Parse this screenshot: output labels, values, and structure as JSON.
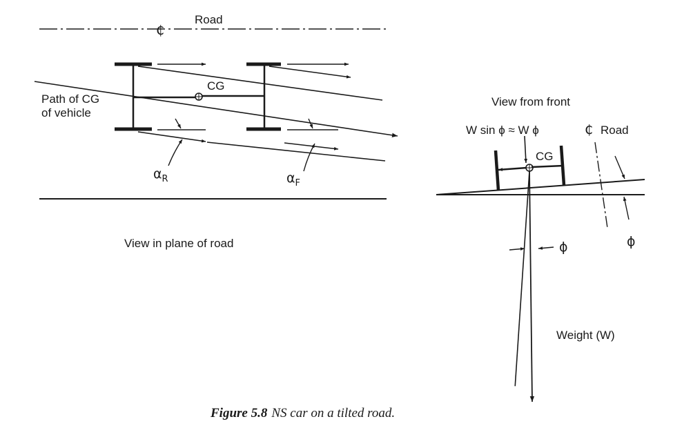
{
  "left_view": {
    "centerline_symbol": "₵",
    "road_label": "Road",
    "path_label_line1": "Path of CG",
    "path_label_line2": "of vehicle",
    "cg_label": "CG",
    "alpha_r_symbol": "α",
    "alpha_r_sub": "R",
    "alpha_f_symbol": "α",
    "alpha_f_sub": "F",
    "view_label": "View in plane of road"
  },
  "right_view": {
    "view_label": "View from front",
    "force_label": "W sin ϕ ≈ W ϕ",
    "cg_label": "CG",
    "centerline_symbol": "₵",
    "road_label": "Road",
    "phi_right": "ϕ",
    "phi_bottom": "ϕ",
    "weight_label": "Weight (W)"
  },
  "caption": {
    "number": "Figure 5.8",
    "text": "NS car on a tilted road."
  }
}
